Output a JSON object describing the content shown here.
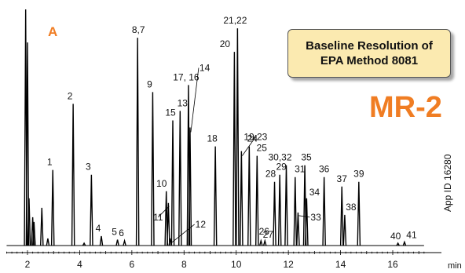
{
  "panel_label": "A",
  "callout": {
    "line1": "Baseline Resolution of",
    "line2": "EPA Method 8081"
  },
  "product_label": "MR-2",
  "app_id": "App ID 16280",
  "colors": {
    "accent": "#f07d23",
    "trace": "#000000",
    "callout_fill": "#fbeab0"
  },
  "chart_data": {
    "type": "line",
    "title": "",
    "xlabel": "min",
    "ylabel": "",
    "x_range": [
      1.2,
      17.2
    ],
    "y_range": [
      0,
      100
    ],
    "x_ticks": [
      2,
      4,
      6,
      8,
      10,
      12,
      14,
      16
    ],
    "x_minor_step": 0.2,
    "grid": false,
    "peaks": [
      {
        "t": 1.93,
        "h": 100
      },
      {
        "t": 2.0,
        "h": 86
      },
      {
        "t": 2.06,
        "h": 20
      },
      {
        "t": 2.2,
        "h": 12
      },
      {
        "t": 2.25,
        "h": 10
      },
      {
        "t": 2.55,
        "h": 16
      },
      {
        "t": 2.78,
        "h": 3
      },
      {
        "t": 2.97,
        "h": 32,
        "label": "1"
      },
      {
        "t": 3.75,
        "h": 60,
        "label": "2"
      },
      {
        "t": 4.17,
        "h": 1
      },
      {
        "t": 4.45,
        "h": 30,
        "label": "3"
      },
      {
        "t": 4.83,
        "h": 4,
        "label": "4"
      },
      {
        "t": 5.45,
        "h": 2.5,
        "label": "5"
      },
      {
        "t": 5.72,
        "h": 2,
        "label": "6"
      },
      {
        "t": 6.22,
        "h": 88,
        "label": "8,7"
      },
      {
        "t": 6.8,
        "h": 65,
        "label": "9"
      },
      {
        "t": 7.32,
        "h": 23,
        "label": "10"
      },
      {
        "t": 7.4,
        "h": 18,
        "label": "11"
      },
      {
        "t": 7.47,
        "h": 3,
        "label": "12"
      },
      {
        "t": 7.57,
        "h": 53,
        "label": "15"
      },
      {
        "t": 7.85,
        "h": 57,
        "label": "13"
      },
      {
        "t": 8.17,
        "h": 68,
        "label": "17, 16"
      },
      {
        "t": 8.23,
        "h": 50,
        "label": "14"
      },
      {
        "t": 9.2,
        "h": 42,
        "label": "18"
      },
      {
        "t": 9.93,
        "h": 82,
        "label": "20"
      },
      {
        "t": 10.05,
        "h": 92,
        "label": "21,22"
      },
      {
        "t": 10.2,
        "h": 40,
        "label": "19,23"
      },
      {
        "t": 10.5,
        "h": 42,
        "label": "24"
      },
      {
        "t": 10.8,
        "h": 38,
        "label": "25"
      },
      {
        "t": 10.95,
        "h": 2,
        "label": "26"
      },
      {
        "t": 11.1,
        "h": 2,
        "label": "27"
      },
      {
        "t": 11.47,
        "h": 27,
        "label": "28"
      },
      {
        "t": 11.67,
        "h": 30,
        "label": "29"
      },
      {
        "t": 11.92,
        "h": 34,
        "label": "30,32"
      },
      {
        "t": 12.26,
        "h": 29,
        "label": "31"
      },
      {
        "t": 12.37,
        "h": 14,
        "label": "33"
      },
      {
        "t": 12.63,
        "h": 34,
        "label": "35"
      },
      {
        "t": 12.7,
        "h": 20,
        "label": "34"
      },
      {
        "t": 13.37,
        "h": 29,
        "label": "36"
      },
      {
        "t": 14.05,
        "h": 25,
        "label": "37"
      },
      {
        "t": 14.16,
        "h": 13,
        "label": "38"
      },
      {
        "t": 14.7,
        "h": 27,
        "label": "39"
      },
      {
        "t": 16.2,
        "h": 1,
        "label": "40"
      },
      {
        "t": 16.45,
        "h": 1.5,
        "label": "41"
      }
    ]
  }
}
